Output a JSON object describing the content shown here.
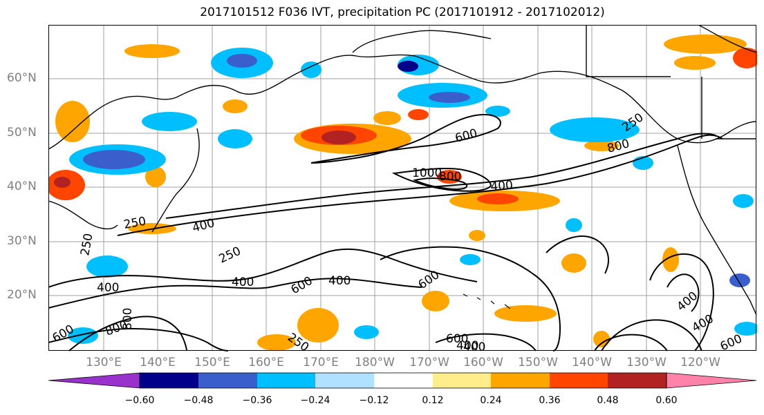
{
  "title": "2017101512 F036 IVT, precipitation PC (2017101912 - 2017102012)",
  "lat_labels": [
    "60°N",
    "50°N",
    "40°N",
    "30°N",
    "20°N"
  ],
  "lon_labels": [
    "130°E",
    "140°E",
    "150°E",
    "160°E",
    "170°E",
    "180°W",
    "170°W",
    "160°W",
    "150°W",
    "140°W",
    "130°W",
    "120°W"
  ],
  "colorbar": {
    "ticks": [
      "−0.60",
      "−0.48",
      "−0.36",
      "−0.24",
      "−0.12",
      "0.12",
      "0.24",
      "0.36",
      "0.48",
      "0.60"
    ],
    "colors": [
      "#9932cc",
      "#00008b",
      "#3a5fcd",
      "#00bfff",
      "#b0e2ff",
      "#ffffff",
      "#ffec8b",
      "#ffa500",
      "#ff4500",
      "#b22222",
      "#ff82ab"
    ]
  },
  "contour_labels": [
    "250",
    "250",
    "250",
    "250",
    "400",
    "400",
    "400",
    "400",
    "400",
    "400",
    "400",
    "400",
    "600",
    "600",
    "600",
    "600",
    "600",
    "800",
    "800",
    "1000",
    "800",
    "800",
    "600",
    "250",
    "400"
  ]
}
